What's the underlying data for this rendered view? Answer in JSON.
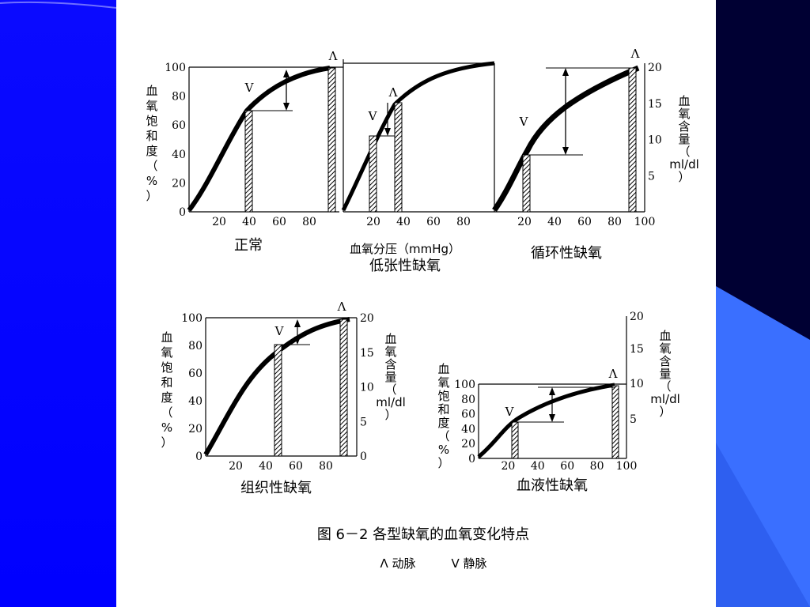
{
  "figure": {
    "caption": "图 6－2   各型缺氧的血氧变化特点",
    "legend_a": "Λ 动脉",
    "legend_v": "V 静脉"
  },
  "labels": {
    "y_left": [
      "血",
      "氧",
      "饱",
      "和",
      "度",
      "（",
      "%",
      "）"
    ],
    "y_right": [
      "血",
      "氧",
      "含",
      "量",
      "（",
      "ml/dl",
      "）"
    ],
    "x_axis": "血氧分压（mmHg）",
    "a_mark": "Λ",
    "v_mark": "V"
  },
  "panels": {
    "normal": {
      "title": "正常"
    },
    "hypotonic": {
      "title": "低张性缺氧"
    },
    "circulatory": {
      "title": "循环性缺氧"
    },
    "histogenous": {
      "title": "组织性缺氧"
    },
    "hemic": {
      "title": "血液性缺氧"
    }
  },
  "ticks": {
    "sat": [
      "0",
      "20",
      "40",
      "60",
      "80",
      "100"
    ],
    "pressure": [
      "20",
      "40",
      "60",
      "80",
      "100"
    ],
    "content": [
      "0",
      "5",
      "10",
      "15",
      "20"
    ]
  }
}
